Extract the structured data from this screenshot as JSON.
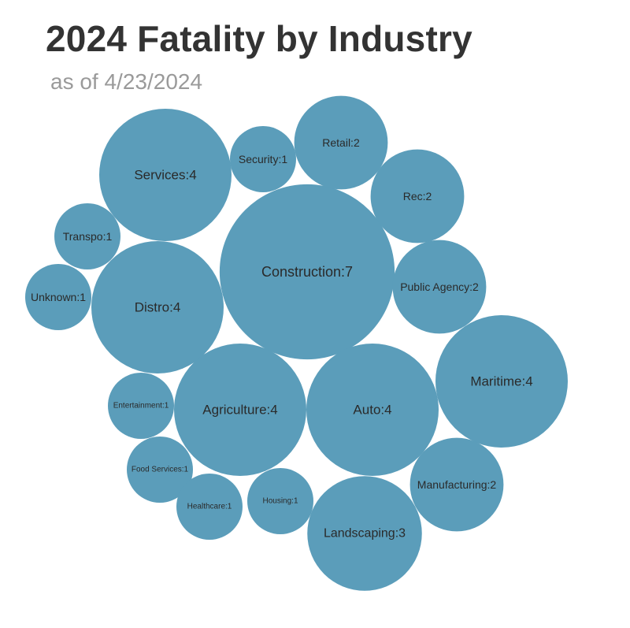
{
  "title": "2024 Fatality by Industry",
  "subtitle": "as of 4/23/2024",
  "colors": {
    "bubble": "#5b9dba",
    "label": "#2a2a2a",
    "title": "#333333",
    "subtitle": "#9a9a9a"
  },
  "chart_data": {
    "type": "bubble",
    "title": "2024 Fatality by Industry",
    "subtitle": "as of 4/23/2024",
    "series": [
      {
        "category": "Construction",
        "value": 7,
        "label": "Construction:7"
      },
      {
        "category": "Services",
        "value": 4,
        "label": "Services:4"
      },
      {
        "category": "Distro",
        "value": 4,
        "label": "Distro:4"
      },
      {
        "category": "Agriculture",
        "value": 4,
        "label": "Agriculture:4"
      },
      {
        "category": "Auto",
        "value": 4,
        "label": "Auto:4"
      },
      {
        "category": "Maritime",
        "value": 4,
        "label": "Maritime:4"
      },
      {
        "category": "Landscaping",
        "value": 3,
        "label": "Landscaping:3"
      },
      {
        "category": "Retail",
        "value": 2,
        "label": "Retail:2"
      },
      {
        "category": "Rec",
        "value": 2,
        "label": "Rec:2"
      },
      {
        "category": "Public Agency",
        "value": 2,
        "label": "Public Agency:2"
      },
      {
        "category": "Manufacturing",
        "value": 2,
        "label": "Manufacturing:2"
      },
      {
        "category": "Security",
        "value": 1,
        "label": "Security:1"
      },
      {
        "category": "Transpo",
        "value": 1,
        "label": "Transpo:1"
      },
      {
        "category": "Unknown",
        "value": 1,
        "label": "Unknown:1"
      },
      {
        "category": "Entertainment",
        "value": 1,
        "label": "Entertainment:1"
      },
      {
        "category": "Food Services",
        "value": 1,
        "label": "Food Services:1"
      },
      {
        "category": "Healthcare",
        "value": 1,
        "label": "Healthcare:1"
      },
      {
        "category": "Housing",
        "value": 1,
        "label": "Housing:1"
      }
    ]
  }
}
